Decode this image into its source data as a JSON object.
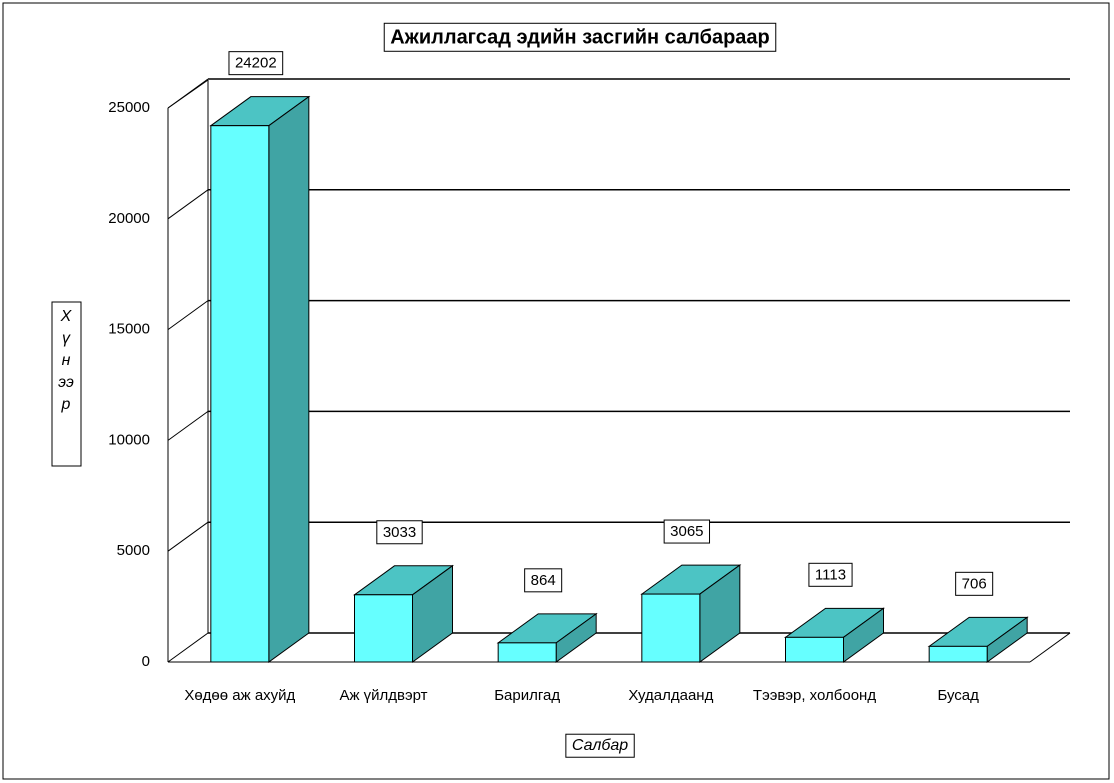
{
  "chart_data": {
    "type": "bar3d",
    "title": "Ажиллагсад эдийн засгийн салбараар",
    "x_label": "Салбар",
    "y_label": "Хүнээр",
    "categories": [
      "Хөдөө аж ахуйд",
      "Аж үйлдвэрт",
      "Барилгад",
      "Худалдаанд",
      "Тээвэр, холбоонд",
      "Бусад"
    ],
    "values": [
      24202,
      3033,
      864,
      3065,
      1113,
      706
    ],
    "colors": {
      "front": "#66ffff",
      "top": "#4cc4c4",
      "side": "#40a4a4"
    },
    "ylim": [
      0,
      25000
    ],
    "yticks": [
      0,
      5000,
      10000,
      15000,
      20000,
      25000
    ],
    "grid": true
  }
}
